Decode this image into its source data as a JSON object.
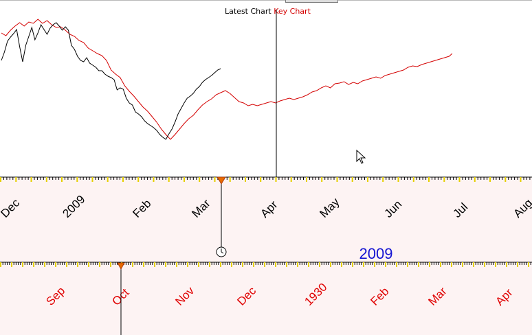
{
  "title": {
    "latest_label": "Latest Chart",
    "key_label": "Key Chart"
  },
  "colors": {
    "latest": "#000000",
    "key": "#d40000",
    "band": "#fdf3f3",
    "tick_major": "#e5d000",
    "year_label": "#1414d2",
    "mouse_cursor": "#ffffff"
  },
  "chart_data": {
    "type": "line",
    "title": "Latest Chart Key Chart",
    "xlabel": "",
    "ylabel": "",
    "grid": false,
    "legend": "none",
    "series": [
      {
        "name": "Latest Chart",
        "points": [
          [
            0,
            170
          ],
          [
            2,
            182
          ],
          [
            4,
            198
          ],
          [
            6,
            204
          ],
          [
            8,
            209
          ],
          [
            10,
            215
          ],
          [
            12,
            190
          ],
          [
            14,
            168
          ],
          [
            16,
            192
          ],
          [
            18,
            205
          ],
          [
            20,
            218
          ],
          [
            22,
            200
          ],
          [
            24,
            210
          ],
          [
            26,
            222
          ],
          [
            28,
            215
          ],
          [
            30,
            208
          ],
          [
            32,
            217
          ],
          [
            34,
            222
          ],
          [
            36,
            225
          ],
          [
            38,
            220
          ],
          [
            40,
            214
          ],
          [
            42,
            219
          ],
          [
            44,
            214
          ],
          [
            46,
            192
          ],
          [
            48,
            186
          ],
          [
            50,
            176
          ],
          [
            52,
            170
          ],
          [
            54,
            168
          ],
          [
            56,
            174
          ],
          [
            58,
            166
          ],
          [
            60,
            163
          ],
          [
            62,
            160
          ],
          [
            64,
            155
          ],
          [
            66,
            155
          ],
          [
            68,
            150
          ],
          [
            70,
            147
          ],
          [
            72,
            145
          ],
          [
            74,
            142
          ],
          [
            76,
            127
          ],
          [
            78,
            130
          ],
          [
            80,
            128
          ],
          [
            82,
            115
          ],
          [
            84,
            108
          ],
          [
            86,
            105
          ],
          [
            88,
            95
          ],
          [
            90,
            92
          ],
          [
            92,
            88
          ],
          [
            94,
            82
          ],
          [
            96,
            78
          ],
          [
            98,
            75
          ],
          [
            100,
            72
          ],
          [
            102,
            68
          ],
          [
            104,
            62
          ],
          [
            106,
            58
          ],
          [
            108,
            55
          ],
          [
            110,
            63
          ],
          [
            112,
            70
          ],
          [
            114,
            80
          ],
          [
            116,
            92
          ],
          [
            118,
            100
          ],
          [
            120,
            108
          ],
          [
            122,
            115
          ],
          [
            124,
            118
          ],
          [
            126,
            122
          ],
          [
            128,
            128
          ],
          [
            130,
            132
          ],
          [
            132,
            138
          ],
          [
            134,
            142
          ],
          [
            136,
            145
          ],
          [
            138,
            148
          ],
          [
            140,
            152
          ],
          [
            142,
            156
          ],
          [
            144,
            158
          ]
        ]
      },
      {
        "name": "Key Chart",
        "points": [
          [
            0,
            210
          ],
          [
            3,
            206
          ],
          [
            6,
            214
          ],
          [
            9,
            220
          ],
          [
            12,
            225
          ],
          [
            15,
            220
          ],
          [
            18,
            226
          ],
          [
            21,
            224
          ],
          [
            24,
            230
          ],
          [
            27,
            224
          ],
          [
            30,
            228
          ],
          [
            33,
            222
          ],
          [
            36,
            218
          ],
          [
            39,
            219
          ],
          [
            42,
            214
          ],
          [
            45,
            208
          ],
          [
            48,
            205
          ],
          [
            51,
            199
          ],
          [
            54,
            196
          ],
          [
            57,
            188
          ],
          [
            60,
            184
          ],
          [
            63,
            180
          ],
          [
            66,
            177
          ],
          [
            69,
            170
          ],
          [
            72,
            156
          ],
          [
            75,
            150
          ],
          [
            78,
            145
          ],
          [
            81,
            133
          ],
          [
            84,
            125
          ],
          [
            87,
            118
          ],
          [
            90,
            110
          ],
          [
            93,
            102
          ],
          [
            96,
            96
          ],
          [
            99,
            88
          ],
          [
            102,
            80
          ],
          [
            105,
            70
          ],
          [
            108,
            62
          ],
          [
            111,
            55
          ],
          [
            114,
            62
          ],
          [
            117,
            70
          ],
          [
            120,
            78
          ],
          [
            123,
            85
          ],
          [
            126,
            90
          ],
          [
            129,
            98
          ],
          [
            132,
            105
          ],
          [
            135,
            110
          ],
          [
            138,
            114
          ],
          [
            141,
            120
          ],
          [
            144,
            123
          ],
          [
            147,
            126
          ],
          [
            150,
            122
          ],
          [
            153,
            116
          ],
          [
            156,
            110
          ],
          [
            159,
            108
          ],
          [
            162,
            104
          ],
          [
            165,
            106
          ],
          [
            168,
            104
          ],
          [
            171,
            106
          ],
          [
            174,
            108
          ],
          [
            177,
            110
          ],
          [
            180,
            108
          ],
          [
            183,
            111
          ],
          [
            186,
            113
          ],
          [
            189,
            115
          ],
          [
            192,
            113
          ],
          [
            195,
            115
          ],
          [
            198,
            117
          ],
          [
            201,
            120
          ],
          [
            204,
            124
          ],
          [
            207,
            126
          ],
          [
            210,
            130
          ],
          [
            213,
            133
          ],
          [
            216,
            130
          ],
          [
            219,
            136
          ],
          [
            222,
            137
          ],
          [
            225,
            139
          ],
          [
            228,
            135
          ],
          [
            231,
            138
          ],
          [
            234,
            136
          ],
          [
            237,
            140
          ],
          [
            240,
            142
          ],
          [
            243,
            144
          ],
          [
            246,
            146
          ],
          [
            249,
            144
          ],
          [
            252,
            148
          ],
          [
            255,
            150
          ],
          [
            258,
            152
          ],
          [
            261,
            154
          ],
          [
            264,
            156
          ],
          [
            267,
            160
          ],
          [
            270,
            162
          ],
          [
            273,
            161
          ],
          [
            276,
            164
          ],
          [
            279,
            166
          ],
          [
            282,
            168
          ],
          [
            285,
            170
          ],
          [
            288,
            172
          ],
          [
            291,
            174
          ],
          [
            294,
            176
          ],
          [
            296,
            180
          ]
        ]
      }
    ],
    "axes": [
      {
        "position": "upper",
        "tick_labels": [
          "Dec",
          "2009",
          "Feb",
          "Mar",
          "Apr",
          "May",
          "Jun",
          "Jul",
          "Aug"
        ],
        "year_label": "2009"
      },
      {
        "position": "lower",
        "tick_labels": [
          "Sep",
          "Oct",
          "Nov",
          "Dec",
          "1930",
          "Feb",
          "Mar",
          "Apr"
        ]
      }
    ],
    "cursor_day": 144
  }
}
